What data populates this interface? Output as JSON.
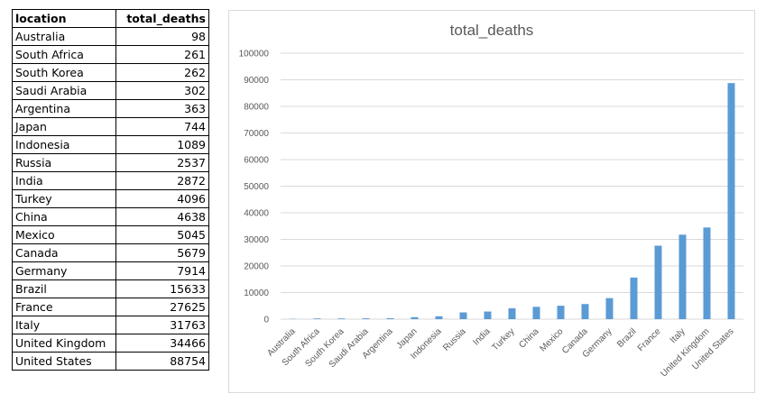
{
  "table": {
    "headers": [
      "location",
      "total_deaths"
    ],
    "rows": [
      [
        "Australia",
        "98"
      ],
      [
        "South Africa",
        "261"
      ],
      [
        "South Korea",
        "262"
      ],
      [
        "Saudi Arabia",
        "302"
      ],
      [
        "Argentina",
        "363"
      ],
      [
        "Japan",
        "744"
      ],
      [
        "Indonesia",
        "1089"
      ],
      [
        "Russia",
        "2537"
      ],
      [
        "India",
        "2872"
      ],
      [
        "Turkey",
        "4096"
      ],
      [
        "China",
        "4638"
      ],
      [
        "Mexico",
        "5045"
      ],
      [
        "Canada",
        "5679"
      ],
      [
        "Germany",
        "7914"
      ],
      [
        "Brazil",
        "15633"
      ],
      [
        "France",
        "27625"
      ],
      [
        "Italy",
        "31763"
      ],
      [
        "United Kingdom",
        "34466"
      ],
      [
        "United States",
        "88754"
      ]
    ]
  },
  "chart_data": {
    "type": "bar",
    "title": "total_deaths",
    "categories": [
      "Australia",
      "South Africa",
      "South Korea",
      "Saudi Arabia",
      "Argentina",
      "Japan",
      "Indonesia",
      "Russia",
      "India",
      "Turkey",
      "China",
      "Mexico",
      "Canada",
      "Germany",
      "Brazil",
      "France",
      "Italy",
      "United Kingdom",
      "United States"
    ],
    "values": [
      98,
      261,
      262,
      302,
      363,
      744,
      1089,
      2537,
      2872,
      4096,
      4638,
      5045,
      5679,
      7914,
      15633,
      27625,
      31763,
      34466,
      88754
    ],
    "ylim": [
      0,
      100000
    ],
    "yticks": [
      "0",
      "10000",
      "20000",
      "30000",
      "40000",
      "50000",
      "60000",
      "70000",
      "80000",
      "90000",
      "100000"
    ],
    "grid": true,
    "legend": "none",
    "bar_color": "#5b9bd5",
    "grid_color": "#d9d9d9"
  }
}
